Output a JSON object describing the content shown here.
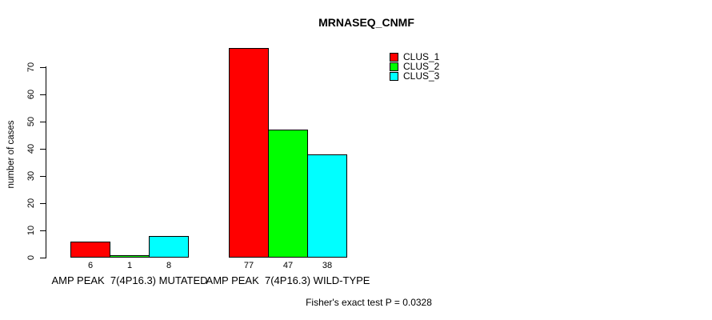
{
  "title": "MRNASEQ_CNMF",
  "footer": "Fisher's exact test P = 0.0328",
  "colors": {
    "clus_1": "#ff0000",
    "clus_2": "#00ff00",
    "clus_3": "#00ffff",
    "axis": "#000000",
    "background": "#ffffff"
  },
  "chart_data": {
    "type": "bar",
    "title": "MRNASEQ_CNMF",
    "categories": [
      "AMP PEAK  7(4P16.3) MUTATED",
      "AMP PEAK  7(4P16.3) WILD-TYPE"
    ],
    "series": [
      {
        "name": "CLUS_1",
        "color": "#ff0000",
        "values": [
          6,
          77
        ]
      },
      {
        "name": "CLUS_2",
        "color": "#00ff00",
        "values": [
          1,
          47
        ]
      },
      {
        "name": "CLUS_3",
        "color": "#00ffff",
        "values": [
          8,
          38
        ]
      }
    ],
    "value_labels": [
      [
        "6",
        "1",
        "8"
      ],
      [
        "77",
        "47",
        "38"
      ]
    ],
    "xlabel": "",
    "ylabel": "number of cases",
    "ylim": [
      0,
      77
    ],
    "yticks": [
      0,
      10,
      20,
      30,
      40,
      50,
      60,
      70
    ],
    "grid": false,
    "legend_position": "top-right",
    "annotation": "Fisher's exact test P = 0.0328"
  }
}
